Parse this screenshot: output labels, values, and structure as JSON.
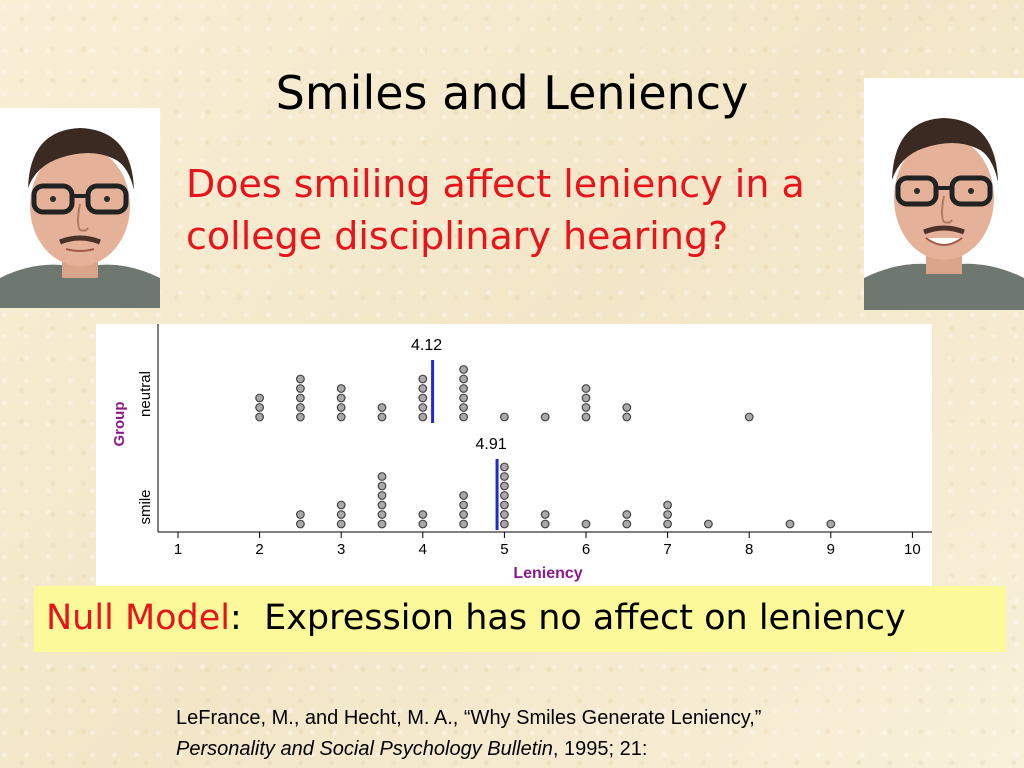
{
  "slide": {
    "title": "Smiles and Leniency",
    "question": "Does smiling affect leniency in a college disciplinary hearing?"
  },
  "null_model": {
    "lead": "Null Model",
    "colon": ":",
    "text": "Expression has no affect on leniency"
  },
  "citation": {
    "line1": "LeFrance, M., and Hecht, M. A., “Why Smiles Generate Leniency,”",
    "journal": "Personality and Social Psychology Bulletin",
    "rest": ", 1995; 21:"
  },
  "colors": {
    "question": "#e8141b",
    "axis_label": "#8b1a8b",
    "mean_line": "#1c2ad4",
    "dot_fill": "#a9a9a9",
    "dot_stroke": "#444444",
    "highlight": "#fbf99a"
  },
  "chart_data": {
    "type": "dotplot",
    "xlabel": "Leniency",
    "ylabel": "Group",
    "xlim": [
      1,
      10
    ],
    "xticks": [
      "1",
      "2",
      "3",
      "4",
      "5",
      "6",
      "7",
      "8",
      "9",
      "10"
    ],
    "groups": [
      "neutral",
      "smile"
    ],
    "series": [
      {
        "name": "neutral",
        "mean": 4.12,
        "mean_label": "4.12",
        "bins": [
          {
            "x": 2.0,
            "count": 3
          },
          {
            "x": 2.5,
            "count": 5
          },
          {
            "x": 3.0,
            "count": 4
          },
          {
            "x": 3.5,
            "count": 2
          },
          {
            "x": 4.0,
            "count": 5
          },
          {
            "x": 4.5,
            "count": 6
          },
          {
            "x": 5.0,
            "count": 1
          },
          {
            "x": 5.5,
            "count": 1
          },
          {
            "x": 6.0,
            "count": 4
          },
          {
            "x": 6.5,
            "count": 2
          },
          {
            "x": 8.0,
            "count": 1
          }
        ]
      },
      {
        "name": "smile",
        "mean": 4.91,
        "mean_label": "4.91",
        "bins": [
          {
            "x": 2.5,
            "count": 2
          },
          {
            "x": 3.0,
            "count": 3
          },
          {
            "x": 3.5,
            "count": 6
          },
          {
            "x": 4.0,
            "count": 2
          },
          {
            "x": 4.5,
            "count": 4
          },
          {
            "x": 5.0,
            "count": 7
          },
          {
            "x": 5.5,
            "count": 2
          },
          {
            "x": 6.0,
            "count": 1
          },
          {
            "x": 6.5,
            "count": 2
          },
          {
            "x": 7.0,
            "count": 3
          },
          {
            "x": 7.5,
            "count": 1
          },
          {
            "x": 8.5,
            "count": 1
          },
          {
            "x": 9.0,
            "count": 1
          }
        ]
      }
    ]
  }
}
